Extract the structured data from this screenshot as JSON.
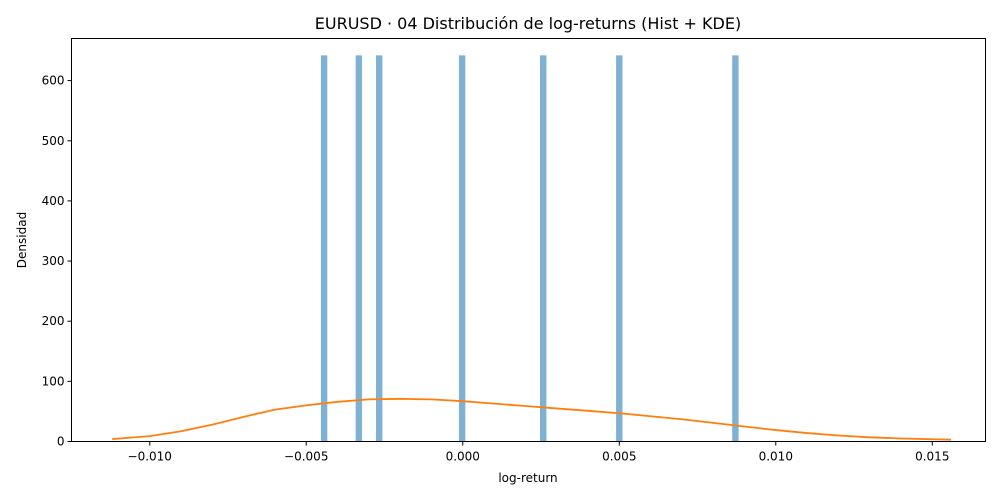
{
  "chart_data": {
    "type": "bar",
    "title": "EURUSD · 04 Distribución de log-returns (Hist + KDE)",
    "xlabel": "log-return",
    "ylabel": "Densidad",
    "xlim": [
      -0.0125,
      0.0167
    ],
    "ylim": [
      0,
      670
    ],
    "grid": false,
    "x_ticks": [
      -0.01,
      -0.005,
      0.0,
      0.005,
      0.01,
      0.015
    ],
    "x_tick_labels": [
      "−0.010",
      "−0.005",
      "0.000",
      "0.005",
      "0.010",
      "0.015"
    ],
    "y_ticks": [
      0,
      100,
      200,
      300,
      400,
      500,
      600
    ],
    "y_tick_labels": [
      "0",
      "100",
      "200",
      "300",
      "400",
      "500",
      "600"
    ],
    "histogram": {
      "color": "#7eb1d3",
      "bin_width": 0.000205,
      "bins": [
        {
          "x": -0.00443,
          "value": 642
        },
        {
          "x": -0.00332,
          "value": 642
        },
        {
          "x": -0.00267,
          "value": 642
        },
        {
          "x": -2e-05,
          "value": 642
        },
        {
          "x": 0.00257,
          "value": 642
        },
        {
          "x": 0.005,
          "value": 642
        },
        {
          "x": 0.00871,
          "value": 642
        }
      ]
    },
    "series": [
      {
        "type": "line",
        "color": "#ff7f0e",
        "x": [
          -0.0112,
          -0.01,
          -0.009,
          -0.008,
          -0.007,
          -0.006,
          -0.005,
          -0.004,
          -0.003,
          -0.002,
          -0.001,
          0.0,
          0.001,
          0.002,
          0.003,
          0.004,
          0.005,
          0.006,
          0.007,
          0.008,
          0.009,
          0.01,
          0.011,
          0.012,
          0.013,
          0.014,
          0.0156
        ],
        "y": [
          4,
          9,
          17,
          28,
          41,
          53,
          60,
          66,
          70,
          71,
          70,
          67,
          63,
          59,
          55,
          51,
          47,
          42,
          37,
          31,
          25,
          19,
          14,
          10,
          7,
          5,
          3
        ]
      }
    ]
  }
}
